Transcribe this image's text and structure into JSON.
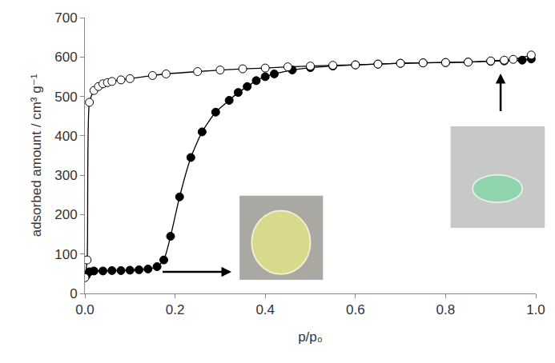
{
  "chart_data": {
    "type": "line",
    "x_label": "p/p₀",
    "y_label": "adsorbed amount / cm³ g⁻¹",
    "xlim": [
      0,
      1
    ],
    "ylim": [
      0,
      700
    ],
    "xticks": [
      {
        "value": 0,
        "label": "0.0"
      },
      {
        "value": 0.2,
        "label": "0.2"
      },
      {
        "value": 0.4,
        "label": "0.4"
      },
      {
        "value": 0.6,
        "label": "0.6"
      },
      {
        "value": 0.8,
        "label": "0.8"
      },
      {
        "value": 1,
        "label": "1.0"
      }
    ],
    "yticks": [
      0,
      100,
      200,
      300,
      400,
      500,
      600,
      700
    ],
    "grid": false,
    "series": [
      {
        "color": "#000000",
        "marker": "filled",
        "line_style": "solid",
        "x": [
          0.003,
          0.01,
          0.02,
          0.04,
          0.06,
          0.08,
          0.1,
          0.12,
          0.14,
          0.16,
          0.175,
          0.19,
          0.21,
          0.235,
          0.26,
          0.29,
          0.32,
          0.34,
          0.36,
          0.38,
          0.4,
          0.42,
          0.46,
          0.5,
          0.55,
          0.6,
          0.65,
          0.7,
          0.75,
          0.8,
          0.85,
          0.9,
          0.93,
          0.97,
          0.99
        ],
        "values": [
          45,
          55,
          57,
          57,
          58,
          58,
          59,
          60,
          62,
          68,
          85,
          145,
          245,
          345,
          410,
          460,
          490,
          510,
          525,
          540,
          550,
          557,
          567,
          573,
          577,
          580,
          582,
          584,
          585,
          586,
          587,
          589,
          590,
          592,
          595
        ]
      },
      {
        "color": "#000000",
        "marker": "open",
        "line_style": "solid",
        "x": [
          0.0,
          0.005,
          0.01,
          0.02,
          0.03,
          0.04,
          0.05,
          0.06,
          0.08,
          0.1,
          0.15,
          0.18,
          0.25,
          0.3,
          0.35,
          0.4,
          0.45,
          0.5,
          0.55,
          0.6,
          0.65,
          0.7,
          0.75,
          0.8,
          0.85,
          0.9,
          0.93,
          0.95,
          0.99
        ],
        "values": [
          40,
          85,
          485,
          515,
          525,
          532,
          535,
          538,
          542,
          545,
          553,
          557,
          563,
          567,
          570,
          572,
          575,
          577,
          579,
          580,
          582,
          584,
          585,
          586,
          587,
          590,
          592,
          594,
          605
        ]
      }
    ]
  }
}
